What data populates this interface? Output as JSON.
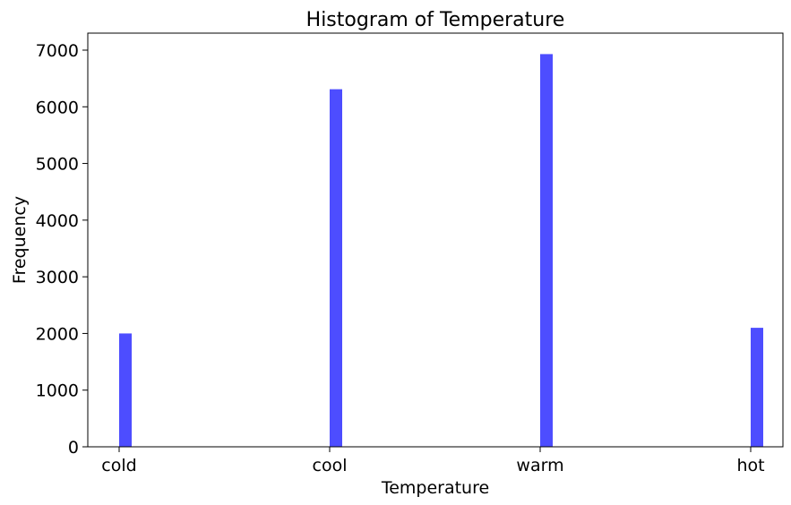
{
  "chart_data": {
    "type": "bar",
    "title": "Histogram of Temperature",
    "xlabel": "Temperature",
    "ylabel": "Frequency",
    "categories": [
      "cold",
      "cool",
      "warm",
      "hot"
    ],
    "values": [
      2000,
      6310,
      6930,
      2100
    ],
    "ylim": [
      0,
      7300
    ],
    "yticks": [
      0,
      1000,
      2000,
      3000,
      4000,
      5000,
      6000,
      7000
    ],
    "grid": false,
    "bar_color": "#4d4dff"
  }
}
